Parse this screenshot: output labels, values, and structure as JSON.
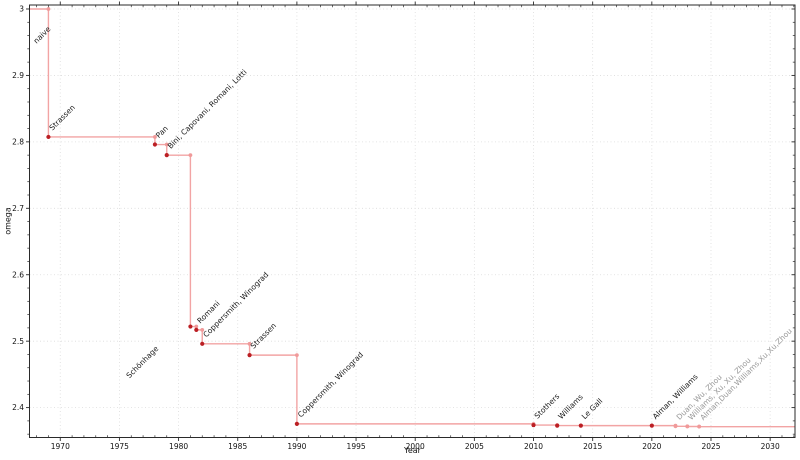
{
  "chart_data": {
    "type": "line",
    "subtype": "step-post",
    "title": "",
    "xlabel": "Year",
    "ylabel": "omega",
    "xlim": [
      1967.4,
      2032.1
    ],
    "ylim": [
      2.355,
      3.006
    ],
    "grid": "dotted-major-both-axes",
    "legend": "none",
    "x_major_ticks": [
      1970,
      1975,
      1980,
      1985,
      1990,
      1995,
      2000,
      2005,
      2010,
      2015,
      2020,
      2025,
      2030
    ],
    "x_tick_labels": [
      "1970",
      "1975",
      "1980",
      "1985",
      "1990",
      "1995",
      "2000",
      "2005",
      "2010",
      "2015",
      "2020",
      "2025",
      "2030"
    ],
    "x_minor_step": 1,
    "y_major_ticks": [
      2.4,
      2.5,
      2.6,
      2.7,
      2.8,
      2.9,
      3
    ],
    "y_tick_labels": [
      "2.4",
      "2.5",
      "2.6",
      "2.7",
      "2.8",
      "2.9",
      "3"
    ],
    "y_minor_step": 0.02,
    "baseline": {
      "label": "naive",
      "value": 3.0,
      "label_dx": 7,
      "label_dy": 35
    },
    "points": [
      {
        "year": 1969,
        "omega": 2.8074,
        "label": "Strassen",
        "emphasis": "dark"
      },
      {
        "year": 1978,
        "omega": 2.796,
        "label": "Pan",
        "emphasis": "dark"
      },
      {
        "year": 1979,
        "omega": 2.78,
        "label": "Bini, Capovani, Romani, Lotti",
        "emphasis": "dark"
      },
      {
        "year": 1981,
        "omega": 2.522,
        "label": "Schönhage",
        "emphasis": "dark",
        "label_dx": -61,
        "label_dy": 52
      },
      {
        "year": 1981.5,
        "omega": 2.517,
        "label": "Romani",
        "emphasis": "dark"
      },
      {
        "year": 1982,
        "omega": 2.496,
        "label": "Coppersmith, Winograd",
        "emphasis": "dark"
      },
      {
        "year": 1986,
        "omega": 2.479,
        "label": "Strassen",
        "emphasis": "dark"
      },
      {
        "year": 1990,
        "omega": 2.3755,
        "label": "Coppersmith, Winograd",
        "emphasis": "dark"
      },
      {
        "year": 2010,
        "omega": 2.3737,
        "label": "Stothers",
        "emphasis": "dark"
      },
      {
        "year": 2012,
        "omega": 2.3729,
        "label": "Williams",
        "emphasis": "dark"
      },
      {
        "year": 2014,
        "omega": 2.37287,
        "label": "Le Gall",
        "emphasis": "dark"
      },
      {
        "year": 2020,
        "omega": 2.37286,
        "label": "Alman, Williams",
        "emphasis": "dark"
      },
      {
        "year": 2022,
        "omega": 2.37188,
        "label": "Duan, Wu, Zhou",
        "emphasis": "light"
      },
      {
        "year": 2023,
        "omega": 2.37155,
        "label": "Williams, Xu, Xu, Zhou",
        "emphasis": "light"
      },
      {
        "year": 2024,
        "omega": 2.37134,
        "label": "Alman,Duan,Williams,Xu,Xu,Zhou",
        "emphasis": "light"
      }
    ],
    "colors": {
      "line": "#f2a4a4",
      "marker_light": "#f09a9a",
      "marker_dark": "#bb1f24",
      "label_dark": "#1a1a1a",
      "label_light": "#999999",
      "grid": "#dcdcdc",
      "axis": "#2a2a2a",
      "tick_text": "#111111",
      "background": "#ffffff"
    }
  }
}
